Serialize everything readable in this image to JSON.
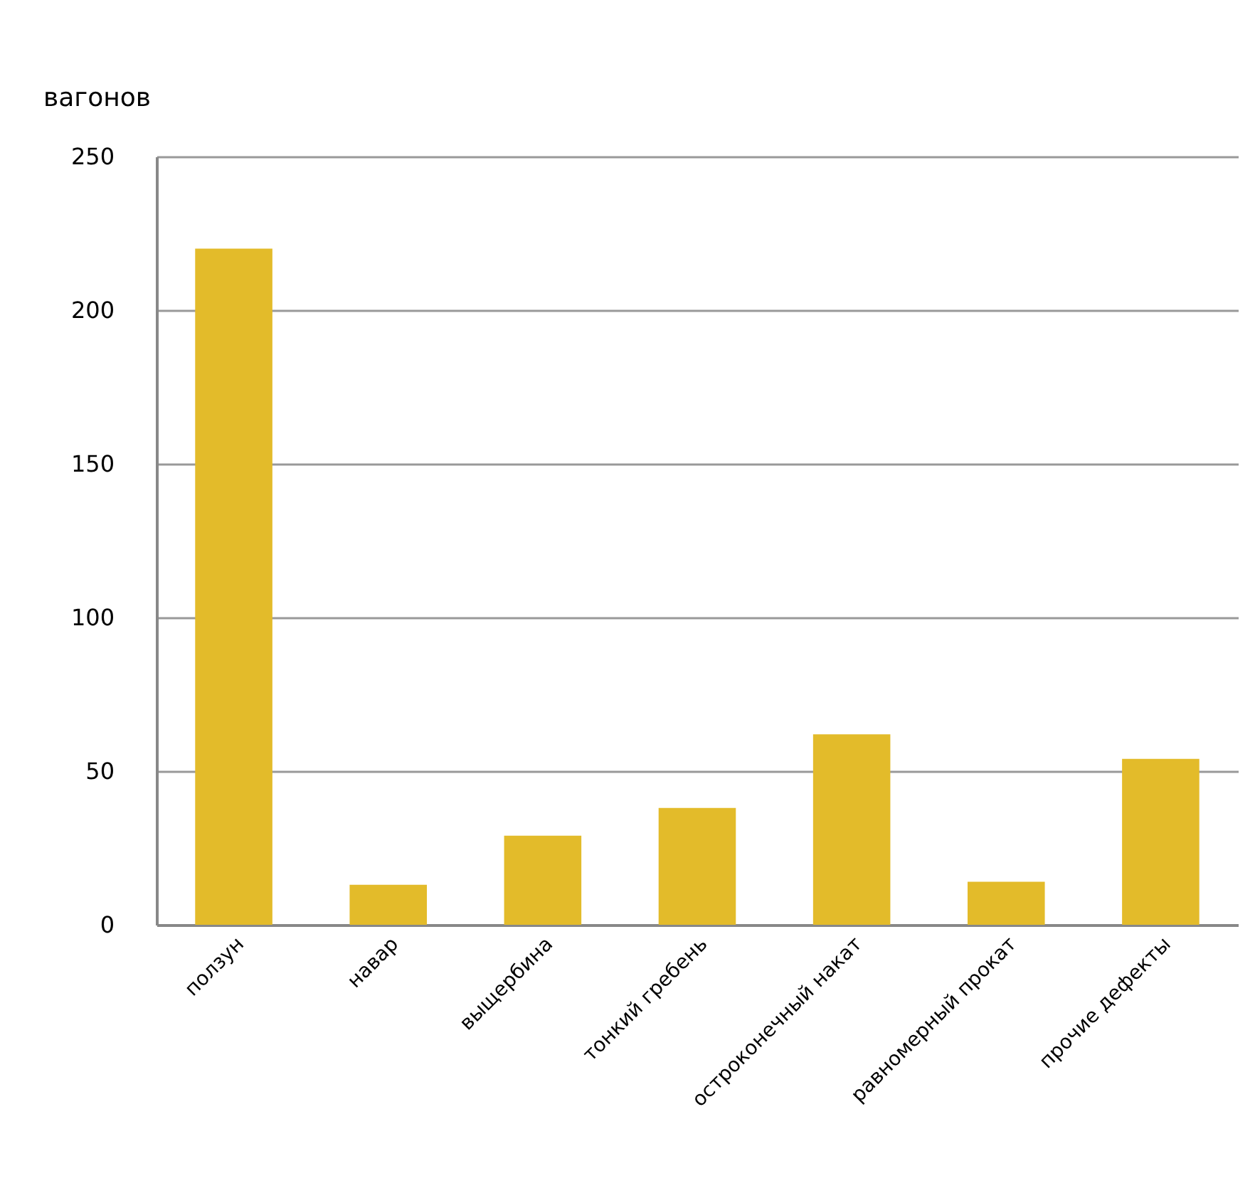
{
  "chart_data": {
    "type": "bar",
    "ylabel": "вагонов",
    "categories": [
      "ползун",
      "навар",
      "выщербина",
      "тонкий гребень",
      "остроконечный накат",
      "равномерный прокат",
      "прочие дефекты"
    ],
    "values": [
      220,
      13,
      29,
      38,
      62,
      14,
      54
    ],
    "color": "#e3bb2a",
    "ylim": [
      0,
      250
    ],
    "yticks": [
      0,
      50,
      100,
      150,
      200,
      250
    ],
    "grid": "y"
  }
}
